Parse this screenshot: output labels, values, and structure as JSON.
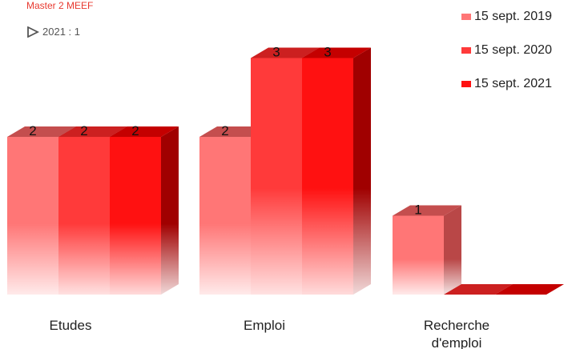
{
  "header": {
    "title": "Master 2 MEEF",
    "filter_value": "2021 : 1"
  },
  "colors": {
    "series_front": [
      "#ff7676",
      "#ff3a3a",
      "#ff1111"
    ],
    "series_top": [
      "#c44e4e",
      "#cc2020",
      "#c40000"
    ],
    "series_side": [
      "#b94747",
      "#b51d1d",
      "#a00000"
    ],
    "title": "#e8392f"
  },
  "chart_data": {
    "type": "bar",
    "title": "Master 2 MEEF",
    "categories": [
      "Etudes",
      "Emploi",
      "Recherche\nd'emploi"
    ],
    "category_lines": [
      [
        "Etudes"
      ],
      [
        "Emploi"
      ],
      [
        "Recherche",
        "d'emploi"
      ]
    ],
    "series": [
      {
        "name": "15 sept. 2019",
        "values": [
          2,
          2,
          1
        ]
      },
      {
        "name": "15 sept. 2020",
        "values": [
          2,
          3,
          0
        ]
      },
      {
        "name": "15 sept. 2021",
        "values": [
          2,
          3,
          0
        ]
      }
    ],
    "ylim": [
      0,
      3.3
    ],
    "grid": false,
    "legend": "top-right",
    "data_labels": true
  }
}
